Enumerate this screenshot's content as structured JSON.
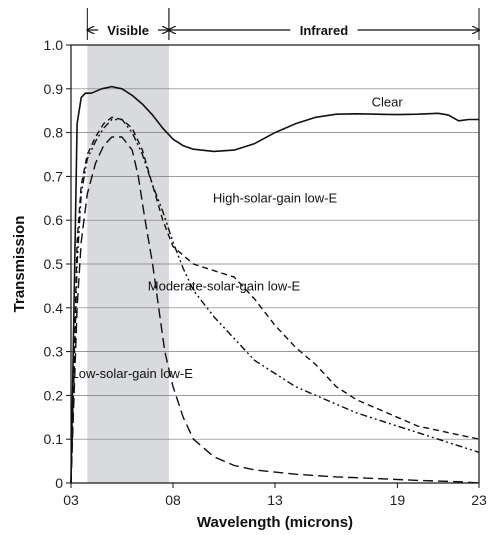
{
  "chart_data": {
    "type": "line",
    "xlabel": "Wavelength (microns)",
    "ylabel": "Transmission",
    "xlim": [
      0.3,
      2.3
    ],
    "ylim": [
      0,
      1.0
    ],
    "x_ticks": [
      {
        "value": 0.3,
        "label": "03"
      },
      {
        "value": 0.8,
        "label": "08"
      },
      {
        "value": 1.3,
        "label": "13"
      },
      {
        "value": 1.9,
        "label": "19"
      },
      {
        "value": 2.3,
        "label": "23"
      }
    ],
    "y_ticks": [
      {
        "value": 0,
        "label": "0"
      },
      {
        "value": 0.1,
        "label": "0.1"
      },
      {
        "value": 0.2,
        "label": "0.2"
      },
      {
        "value": 0.3,
        "label": "0.3"
      },
      {
        "value": 0.4,
        "label": "0.4"
      },
      {
        "value": 0.5,
        "label": "0.5"
      },
      {
        "value": 0.6,
        "label": "0.6"
      },
      {
        "value": 0.7,
        "label": "0.7"
      },
      {
        "value": 0.8,
        "label": "0.8"
      },
      {
        "value": 0.9,
        "label": "0.9"
      },
      {
        "value": 1.0,
        "label": "1.0"
      }
    ],
    "grid": "horizontal",
    "bands": [
      {
        "label": "Visible",
        "from": 0.38,
        "to": 0.78,
        "shaded": true
      },
      {
        "label": "Infrared",
        "from": 0.78,
        "to": 2.3,
        "shaded": false
      }
    ],
    "series": [
      {
        "name": "Clear",
        "style": "solid",
        "label_at": [
          1.85,
          0.86
        ],
        "x": [
          0.3,
          0.33,
          0.35,
          0.37,
          0.4,
          0.45,
          0.5,
          0.55,
          0.6,
          0.65,
          0.7,
          0.75,
          0.8,
          0.85,
          0.9,
          1.0,
          1.1,
          1.2,
          1.3,
          1.4,
          1.5,
          1.6,
          1.7,
          1.8,
          1.9,
          2.0,
          2.1,
          2.15,
          2.2,
          2.25,
          2.3
        ],
        "y": [
          0.0,
          0.82,
          0.88,
          0.89,
          0.89,
          0.9,
          0.905,
          0.9,
          0.885,
          0.865,
          0.84,
          0.81,
          0.785,
          0.77,
          0.762,
          0.757,
          0.76,
          0.775,
          0.8,
          0.82,
          0.835,
          0.842,
          0.843,
          0.842,
          0.841,
          0.842,
          0.844,
          0.84,
          0.827,
          0.83,
          0.83
        ]
      },
      {
        "name": "High-solar-gain low-E",
        "style": "dashed",
        "label_at": [
          1.3,
          0.64
        ],
        "x": [
          0.3,
          0.33,
          0.35,
          0.38,
          0.42,
          0.46,
          0.5,
          0.55,
          0.6,
          0.65,
          0.7,
          0.75,
          0.8,
          0.9,
          1.0,
          1.1,
          1.2,
          1.3,
          1.4,
          1.5,
          1.6,
          1.7,
          1.8,
          1.9,
          2.0,
          2.1,
          2.2,
          2.3
        ],
        "y": [
          0.0,
          0.55,
          0.68,
          0.75,
          0.79,
          0.82,
          0.835,
          0.83,
          0.81,
          0.76,
          0.68,
          0.6,
          0.54,
          0.5,
          0.485,
          0.47,
          0.42,
          0.36,
          0.31,
          0.27,
          0.22,
          0.19,
          0.17,
          0.15,
          0.13,
          0.12,
          0.11,
          0.1
        ]
      },
      {
        "name": "Moderate-solar-gain low-E",
        "style": "dash-dot-dot",
        "label_at": [
          1.05,
          0.44
        ],
        "x": [
          0.3,
          0.33,
          0.35,
          0.38,
          0.42,
          0.46,
          0.5,
          0.55,
          0.6,
          0.65,
          0.7,
          0.75,
          0.8,
          0.85,
          0.9,
          1.0,
          1.1,
          1.2,
          1.3,
          1.4,
          1.5,
          1.6,
          1.7,
          1.8,
          1.9,
          2.0,
          2.1,
          2.2,
          2.3
        ],
        "y": [
          0.0,
          0.5,
          0.66,
          0.74,
          0.78,
          0.81,
          0.83,
          0.83,
          0.8,
          0.75,
          0.68,
          0.62,
          0.55,
          0.49,
          0.44,
          0.38,
          0.33,
          0.28,
          0.25,
          0.22,
          0.2,
          0.18,
          0.16,
          0.145,
          0.13,
          0.115,
          0.1,
          0.085,
          0.07
        ]
      },
      {
        "name": "Low-solar-gain low-E",
        "style": "long-dashed",
        "label_at": [
          0.6,
          0.24
        ],
        "x": [
          0.3,
          0.33,
          0.35,
          0.38,
          0.42,
          0.46,
          0.5,
          0.55,
          0.6,
          0.63,
          0.66,
          0.7,
          0.73,
          0.76,
          0.8,
          0.85,
          0.9,
          1.0,
          1.1,
          1.2,
          1.3,
          1.4,
          1.5,
          1.6,
          1.7,
          1.8,
          2.0,
          2.2,
          2.3
        ],
        "y": [
          0.0,
          0.4,
          0.55,
          0.66,
          0.73,
          0.77,
          0.79,
          0.79,
          0.76,
          0.7,
          0.61,
          0.5,
          0.4,
          0.3,
          0.22,
          0.15,
          0.1,
          0.06,
          0.04,
          0.03,
          0.025,
          0.02,
          0.017,
          0.014,
          0.012,
          0.01,
          0.006,
          0.003,
          0.0
        ]
      }
    ]
  }
}
